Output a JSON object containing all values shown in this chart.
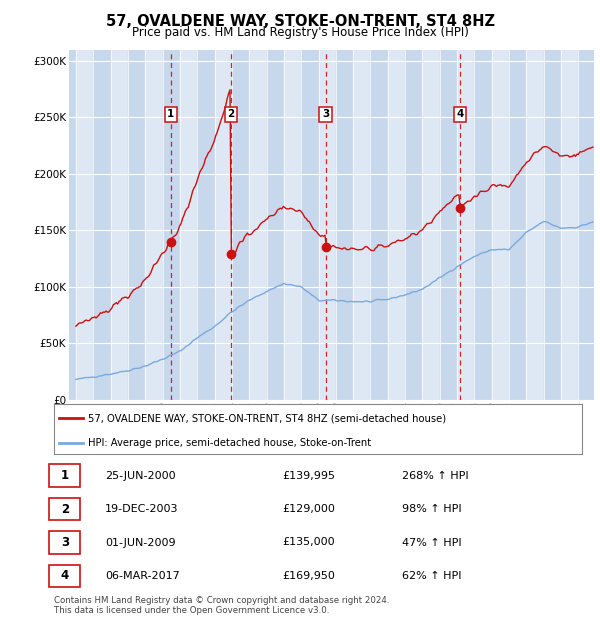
{
  "title": "57, OVALDENE WAY, STOKE-ON-TRENT, ST4 8HZ",
  "subtitle": "Price paid vs. HM Land Registry's House Price Index (HPI)",
  "ylim": [
    0,
    310000
  ],
  "yticks": [
    0,
    50000,
    100000,
    150000,
    200000,
    250000,
    300000
  ],
  "hpi_color": "#7aaadd",
  "price_color": "#cc1111",
  "vline_color": "#cc1111",
  "bg_color": "#dde8f4",
  "alt_band_color": "#c8d8ec",
  "grid_color": "#ffffff",
  "sales": [
    {
      "date_num": 2000.48,
      "price": 139995,
      "label": "1"
    },
    {
      "date_num": 2003.96,
      "price": 129000,
      "label": "2"
    },
    {
      "date_num": 2009.41,
      "price": 135000,
      "label": "3"
    },
    {
      "date_num": 2017.17,
      "price": 169950,
      "label": "4"
    }
  ],
  "table_rows": [
    [
      "1",
      "25-JUN-2000",
      "£139,995",
      "268% ↑ HPI"
    ],
    [
      "2",
      "19-DEC-2003",
      "£129,000",
      "98% ↑ HPI"
    ],
    [
      "3",
      "01-JUN-2009",
      "£135,000",
      "47% ↑ HPI"
    ],
    [
      "4",
      "06-MAR-2017",
      "£169,950",
      "62% ↑ HPI"
    ]
  ],
  "legend_line1": "57, OVALDENE WAY, STOKE-ON-TRENT, ST4 8HZ (semi-detached house)",
  "legend_line2": "HPI: Average price, semi-detached house, Stoke-on-Trent",
  "footer": "Contains HM Land Registry data © Crown copyright and database right 2024.\nThis data is licensed under the Open Government Licence v3.0.",
  "xmin": 1994.6,
  "xmax": 2024.9,
  "hpi_anchors_x": [
    1995,
    1996,
    1997,
    1998,
    1999,
    2000,
    2001,
    2002,
    2003,
    2004,
    2005,
    2006,
    2007,
    2008,
    2009,
    2010,
    2011,
    2012,
    2013,
    2014,
    2015,
    2016,
    2017,
    2018,
    2019,
    2020,
    2021,
    2022,
    2023,
    2024,
    2024.9
  ],
  "hpi_anchors_y": [
    18000,
    20500,
    23000,
    26000,
    30000,
    36000,
    43000,
    55000,
    65000,
    78000,
    88000,
    96000,
    103000,
    100000,
    88000,
    88000,
    87000,
    87000,
    89000,
    93000,
    98000,
    108000,
    118000,
    127000,
    133000,
    133000,
    148000,
    158000,
    152000,
    153000,
    158000
  ]
}
